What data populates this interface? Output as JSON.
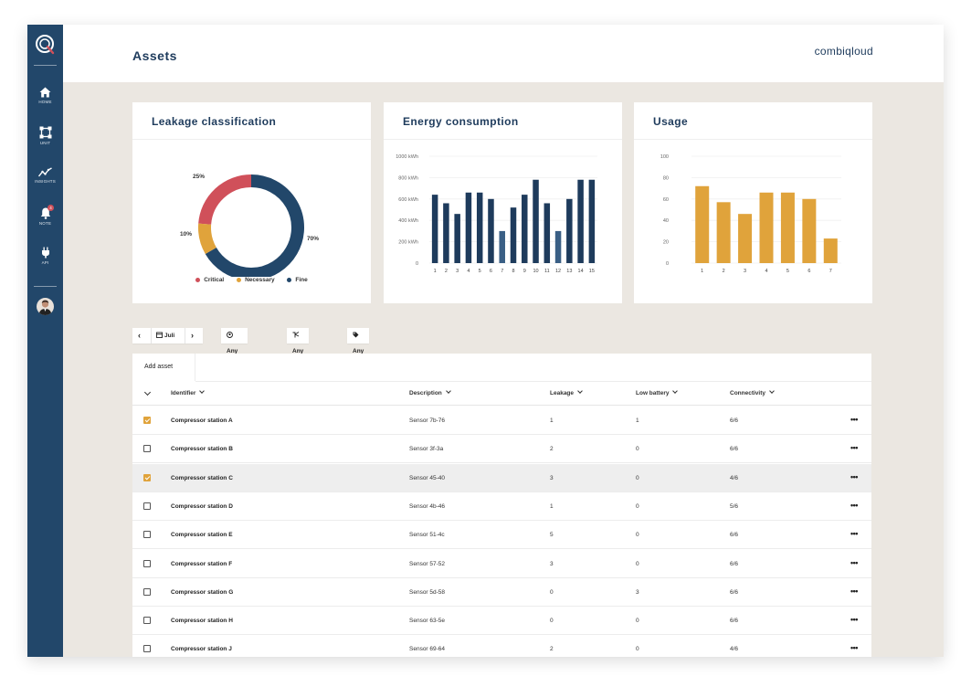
{
  "header": {
    "title": "Assets",
    "brand": "combiqloud"
  },
  "sidebar": {
    "items": [
      {
        "label": "HOME",
        "icon": "home-icon"
      },
      {
        "label": "UNIT",
        "icon": "unit-icon"
      },
      {
        "label": "INSIGHTS",
        "icon": "insights-icon"
      },
      {
        "label": "NOTE",
        "icon": "bell-icon",
        "badge": "4"
      },
      {
        "label": "API",
        "icon": "plug-icon"
      }
    ]
  },
  "colors": {
    "sidebar": "#22476a",
    "navy": "#1e3b5c",
    "critical": "#d0505a",
    "necessary": "#e0a33b",
    "fine": "#22476a",
    "usage_bar": "#e0a33b",
    "background": "#ebe7e1"
  },
  "cards": {
    "leakage": {
      "title": "Leakage classification"
    },
    "energy": {
      "title": "Energy consumption"
    },
    "usage": {
      "title": "Usage"
    }
  },
  "chart_data": [
    {
      "type": "pie",
      "title": "Leakage classification",
      "categories": [
        "Critical",
        "Necessary",
        "Fine"
      ],
      "values": [
        25,
        10,
        70
      ],
      "labels": [
        "25%",
        "10%",
        "70%"
      ],
      "colors": [
        "#d0505a",
        "#e0a33b",
        "#22476a"
      ],
      "legend": "bottom"
    },
    {
      "type": "bar",
      "title": "Energy consumption",
      "categories": [
        "1",
        "2",
        "3",
        "4",
        "5",
        "6",
        "7",
        "8",
        "9",
        "10",
        "11",
        "12",
        "13",
        "14",
        "15"
      ],
      "values": [
        640,
        560,
        460,
        660,
        660,
        600,
        300,
        520,
        640,
        780,
        560,
        300,
        600,
        780,
        780
      ],
      "ylim": [
        0,
        1000
      ],
      "yticks": [
        "0",
        "200 kWh",
        "400 kWh",
        "600 kWh",
        "800 kWh",
        "1000 kWh"
      ],
      "grid": true
    },
    {
      "type": "bar",
      "title": "Usage",
      "categories": [
        "1",
        "2",
        "3",
        "4",
        "5",
        "6",
        "7"
      ],
      "values": [
        72,
        57,
        46,
        66,
        66,
        60,
        23
      ],
      "ylim": [
        0,
        100
      ],
      "yticks": [
        "0",
        "20",
        "40",
        "60",
        "80",
        "100"
      ],
      "grid": true
    }
  ],
  "filters": {
    "month": "Juli",
    "client": "Any client",
    "unit": "Any unit",
    "tag": "Any tag"
  },
  "table": {
    "add_label": "Add asset",
    "columns": [
      "Identifier",
      "Description",
      "Leakage",
      "Low battery",
      "Connectivity"
    ],
    "rows": [
      {
        "id": "Compressor station A",
        "desc": "Sensor 7b-76",
        "leak": "1",
        "batt": "1",
        "conn": "6/6",
        "checked": true
      },
      {
        "id": "Compressor station B",
        "desc": "Sensor 3f-3a",
        "leak": "2",
        "batt": "0",
        "conn": "6/6",
        "checked": false
      },
      {
        "id": "Compressor station C",
        "desc": "Sensor 45-40",
        "leak": "3",
        "batt": "0",
        "conn": "4/6",
        "checked": true
      },
      {
        "id": "Compressor station D",
        "desc": "Sensor 4b-46",
        "leak": "1",
        "batt": "0",
        "conn": "5/6",
        "checked": false
      },
      {
        "id": "Compressor station E",
        "desc": "Sensor 51-4c",
        "leak": "5",
        "batt": "0",
        "conn": "6/6",
        "checked": false
      },
      {
        "id": "Compressor station F",
        "desc": "Sensor 57-52",
        "leak": "3",
        "batt": "0",
        "conn": "6/6",
        "checked": false
      },
      {
        "id": "Compressor station G",
        "desc": "Sensor 5d-58",
        "leak": "0",
        "batt": "3",
        "conn": "6/6",
        "checked": false
      },
      {
        "id": "Compressor station H",
        "desc": "Sensor 63-5e",
        "leak": "0",
        "batt": "0",
        "conn": "6/6",
        "checked": false
      },
      {
        "id": "Compressor station J",
        "desc": "Sensor 69-64",
        "leak": "2",
        "batt": "0",
        "conn": "4/6",
        "checked": false
      }
    ]
  }
}
